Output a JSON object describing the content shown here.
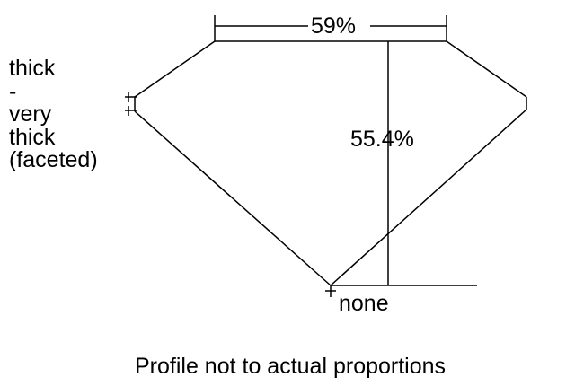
{
  "diagram": {
    "table_percent": "59%",
    "depth_percent": "55.4%",
    "culet": "none",
    "girdle_lines": [
      "thick",
      "-",
      "very",
      "thick",
      "(faceted)"
    ],
    "caption": "Profile not to actual proportions"
  }
}
